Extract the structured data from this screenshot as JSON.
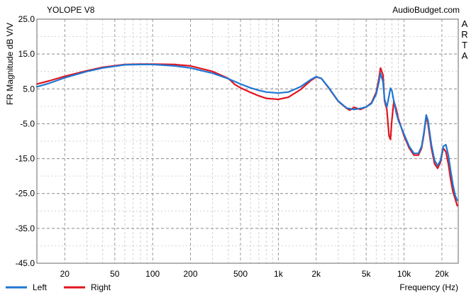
{
  "chart_data": {
    "type": "line",
    "title": "YOLOPE V8",
    "source": "AudioBudget.com",
    "side_label": "ARTA",
    "xlabel": "Frequency (Hz)",
    "ylabel": "FR Magnitude dB V/V",
    "x_scale": "log",
    "xlim": [
      12,
      27000
    ],
    "ylim": [
      -45,
      25
    ],
    "grid": true,
    "legend_position": "bottom-left",
    "x_ticks": [
      {
        "value": 20,
        "label": "20"
      },
      {
        "value": 50,
        "label": "50"
      },
      {
        "value": 100,
        "label": "100"
      },
      {
        "value": 200,
        "label": "200"
      },
      {
        "value": 500,
        "label": "500"
      },
      {
        "value": 1000,
        "label": "1k"
      },
      {
        "value": 2000,
        "label": "2k"
      },
      {
        "value": 5000,
        "label": "5k"
      },
      {
        "value": 10000,
        "label": "10k"
      },
      {
        "value": 20000,
        "label": "20k"
      }
    ],
    "y_ticks": [
      {
        "value": 25,
        "label": "25.0"
      },
      {
        "value": 15,
        "label": "15.0"
      },
      {
        "value": 5,
        "label": "5.0"
      },
      {
        "value": -5,
        "label": "-5.0"
      },
      {
        "value": -15,
        "label": "-15.0"
      },
      {
        "value": -25,
        "label": "-25.0"
      },
      {
        "value": -35,
        "label": "-35.0"
      },
      {
        "value": -45,
        "label": "-45.0"
      }
    ],
    "series": [
      {
        "name": "Left",
        "color": "#1f77d4",
        "x": [
          12,
          15,
          20,
          30,
          40,
          60,
          80,
          100,
          150,
          200,
          300,
          400,
          500,
          600,
          700,
          800,
          1000,
          1200,
          1500,
          1800,
          2000,
          2200,
          2500,
          3000,
          3500,
          4000,
          4500,
          5000,
          5500,
          6000,
          6300,
          6500,
          6800,
          7000,
          7300,
          7600,
          7800,
          8000,
          8300,
          8700,
          9000,
          10000,
          11000,
          12000,
          13000,
          13800,
          14400,
          15000,
          15500,
          16500,
          17500,
          18500,
          19500,
          20500,
          21500,
          22500,
          23500,
          24500,
          25500,
          26500
        ],
        "y": [
          5.6,
          6.6,
          8.2,
          10.0,
          11.0,
          11.9,
          12.0,
          12.0,
          11.6,
          11.0,
          9.5,
          7.9,
          6.4,
          5.3,
          4.6,
          4.1,
          3.8,
          4.1,
          5.6,
          7.6,
          8.5,
          8.0,
          5.5,
          1.5,
          -0.5,
          -0.9,
          -0.6,
          -0.2,
          0.8,
          3.5,
          6.8,
          9.5,
          7.0,
          2.0,
          -0.2,
          3.0,
          5.2,
          4.5,
          1.5,
          -2.0,
          -4.0,
          -8.0,
          -11.5,
          -13.5,
          -13.5,
          -11.5,
          -7.5,
          -2.5,
          -4.0,
          -11.0,
          -15.5,
          -17.0,
          -15.5,
          -11.5,
          -11.0,
          -14.0,
          -18.5,
          -22.5,
          -25.5,
          -27.0
        ]
      },
      {
        "name": "Right",
        "color": "#e0141e",
        "x": [
          12,
          15,
          20,
          30,
          40,
          60,
          80,
          100,
          150,
          200,
          300,
          400,
          450,
          500,
          600,
          700,
          800,
          1000,
          1200,
          1500,
          1800,
          2000,
          2200,
          2500,
          3000,
          3500,
          3700,
          4000,
          4500,
          5000,
          5500,
          6000,
          6300,
          6500,
          6800,
          7000,
          7300,
          7600,
          7800,
          8000,
          8300,
          8700,
          9000,
          10000,
          11000,
          12000,
          13000,
          13800,
          14400,
          15000,
          15500,
          16500,
          17500,
          18500,
          19500,
          20500,
          21500,
          22500,
          23500,
          24500,
          25500,
          26500
        ],
        "y": [
          6.4,
          7.3,
          8.6,
          10.2,
          11.2,
          12.0,
          12.1,
          12.1,
          12.0,
          11.6,
          10.0,
          8.0,
          6.3,
          5.3,
          4.0,
          3.0,
          2.3,
          2.0,
          2.6,
          4.8,
          7.3,
          8.4,
          8.0,
          5.4,
          1.4,
          -0.6,
          -1.1,
          -0.3,
          -0.9,
          -0.2,
          1.0,
          4.0,
          7.8,
          11.0,
          9.0,
          1.5,
          -0.8,
          -8.5,
          -9.5,
          -4.0,
          1.5,
          -1.0,
          -3.5,
          -8.5,
          -12.0,
          -14.0,
          -14.0,
          -12.0,
          -8.0,
          -2.8,
          -5.0,
          -12.0,
          -16.5,
          -17.8,
          -16.0,
          -12.0,
          -13.0,
          -16.5,
          -21.0,
          -24.5,
          -26.5,
          -28.5
        ]
      }
    ]
  }
}
